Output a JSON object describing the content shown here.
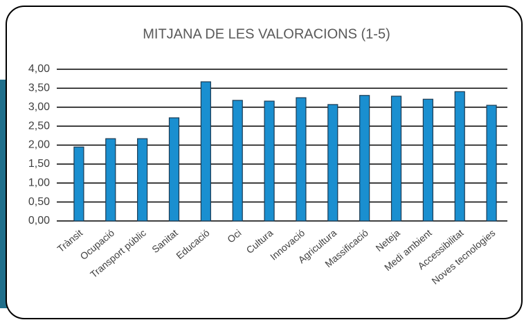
{
  "chart_data": {
    "type": "bar",
    "title": "MITJANA DE LES VALORACIONS (1-5)",
    "categories": [
      "Trànsit",
      "Ocupació",
      "Transport públic",
      "Sanitat",
      "Educació",
      "Oci",
      "Cultura",
      "Innovació",
      "Agricultura",
      "Massificació",
      "Neteja",
      "Medi ambient",
      "Accessibilitat",
      "Noves tecnologies"
    ],
    "values": [
      1.95,
      2.17,
      2.17,
      2.72,
      3.67,
      3.18,
      3.16,
      3.25,
      3.07,
      3.31,
      3.29,
      3.21,
      3.41,
      3.05
    ],
    "color": "#1a8fd0",
    "ylim": [
      0,
      4
    ],
    "yticks": [
      {
        "value": 0,
        "label": "0,00"
      },
      {
        "value": 0.5,
        "label": "0,50"
      },
      {
        "value": 1,
        "label": "1,00"
      },
      {
        "value": 1.5,
        "label": "1,50"
      },
      {
        "value": 2,
        "label": "2,00"
      },
      {
        "value": 2.5,
        "label": "2,50"
      },
      {
        "value": 3,
        "label": "3,00"
      },
      {
        "value": 3.5,
        "label": "3,50"
      },
      {
        "value": 4,
        "label": "4,00"
      }
    ],
    "grid": true
  }
}
